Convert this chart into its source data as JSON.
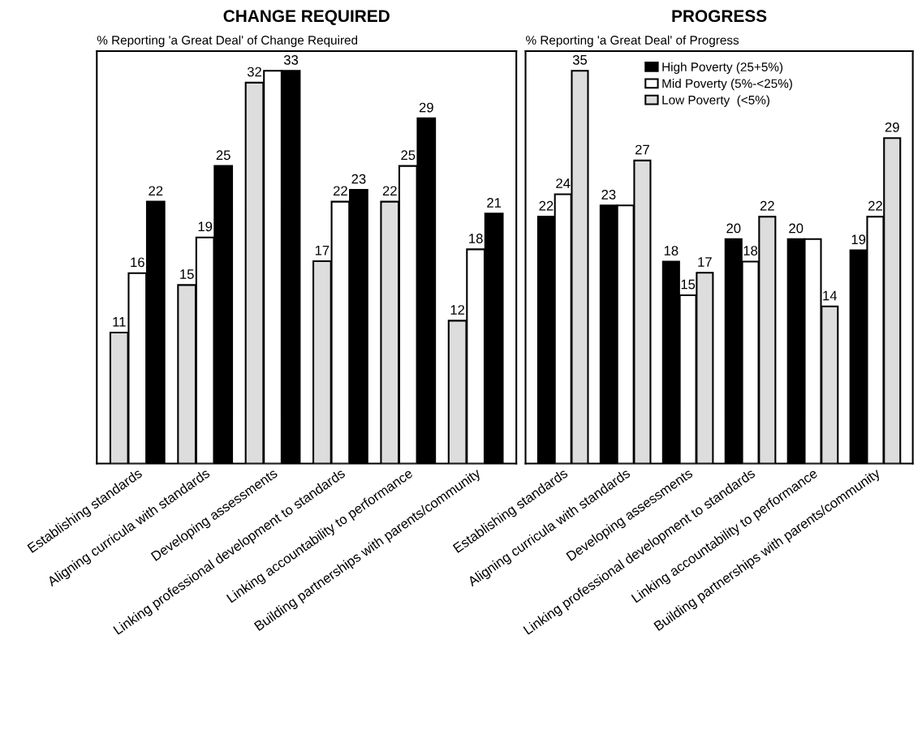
{
  "chart_data": [
    {
      "type": "bar",
      "title": "CHANGE REQUIRED",
      "subtitle": "% Reporting 'a Great Deal' of Change Required",
      "categories": [
        "Establishing standards",
        "Aligning curricula with standards",
        "Developing assessments",
        "Linking professional development to standards",
        "Linking accountability to performance",
        "Building partnerships with parents/community"
      ],
      "series": [
        {
          "color": "#dddddd",
          "values": [
            11,
            15,
            32,
            17,
            22,
            12
          ],
          "value_labels": [
            "11",
            "15",
            "32",
            "17",
            "22",
            "12"
          ]
        },
        {
          "color": "#ffffff",
          "values": [
            16,
            19,
            33,
            22,
            25,
            18
          ],
          "value_labels": [
            "16",
            "19",
            null,
            "22",
            "25",
            "18"
          ]
        },
        {
          "color": "#000000",
          "values": [
            22,
            25,
            33,
            23,
            29,
            21
          ],
          "value_labels": [
            "22",
            "25",
            "33",
            "23",
            "29",
            "21"
          ]
        }
      ],
      "tick_labels": "x",
      "grid": false,
      "legend": false
    },
    {
      "type": "bar",
      "title": "PROGRESS",
      "subtitle": "% Reporting 'a Great Deal' of Progress",
      "categories": [
        "Establishing standards",
        "Aligning curricula with standards",
        "Developing assessments",
        "Linking professional development to standards",
        "Linking accountability to performance",
        "Building partnerships with parents/community"
      ],
      "series": [
        {
          "name": "High Poverty (25+5%)",
          "color": "#000000",
          "values": [
            22,
            23,
            18,
            20,
            20,
            19
          ],
          "value_labels": [
            "22",
            "23",
            "18",
            "20",
            "20",
            "19"
          ]
        },
        {
          "name": "Mid Poverty (5%-<25%)",
          "color": "#ffffff",
          "values": [
            24,
            23,
            15,
            18,
            20,
            22
          ],
          "value_labels": [
            "24",
            null,
            "15",
            "18",
            null,
            "22"
          ]
        },
        {
          "name": "Low Poverty  (<5%)",
          "color": "#dddddd",
          "values": [
            35,
            27,
            17,
            22,
            14,
            29
          ],
          "value_labels": [
            "35",
            "27",
            "17",
            "22",
            "14",
            "29"
          ]
        }
      ],
      "tick_labels": "x",
      "grid": false,
      "legend": "top"
    }
  ]
}
